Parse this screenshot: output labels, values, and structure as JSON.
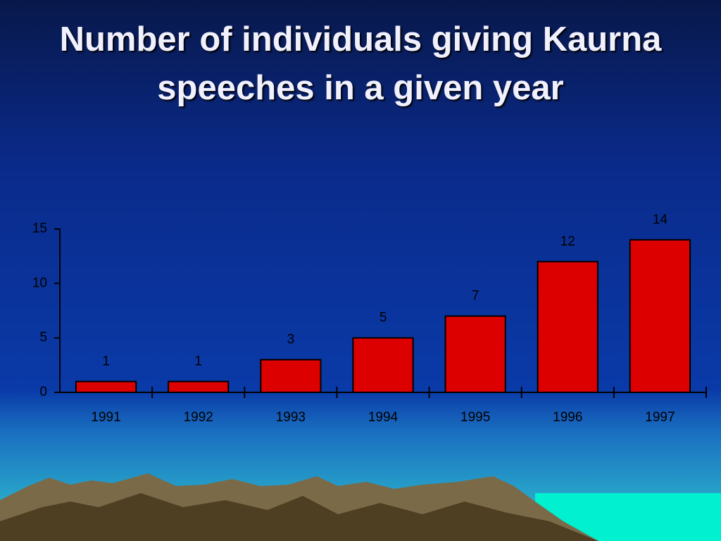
{
  "chart_data": {
    "type": "bar",
    "title": "Number of individuals giving Kaurna speeches in a given year",
    "categories": [
      "1991",
      "1992",
      "1993",
      "1994",
      "1995",
      "1996",
      "1997"
    ],
    "values": [
      1,
      1,
      3,
      5,
      7,
      12,
      14
    ],
    "color": "#dd0000",
    "ylim": [
      0,
      15
    ],
    "yticks": [
      0,
      5,
      10,
      15
    ],
    "grid": false
  }
}
